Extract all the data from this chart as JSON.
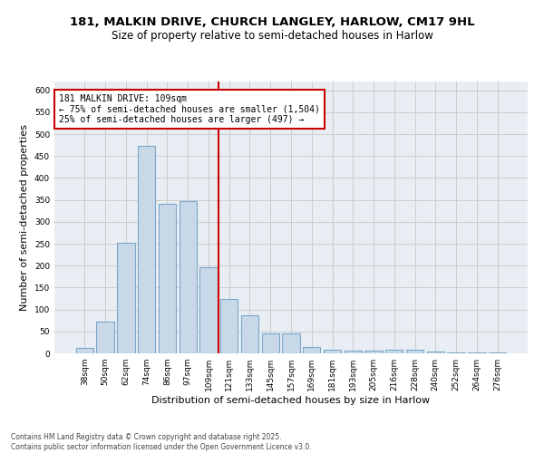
{
  "title_line1": "181, MALKIN DRIVE, CHURCH LANGLEY, HARLOW, CM17 9HL",
  "title_line2": "Size of property relative to semi-detached houses in Harlow",
  "xlabel": "Distribution of semi-detached houses by size in Harlow",
  "ylabel": "Number of semi-detached properties",
  "categories": [
    "38sqm",
    "50sqm",
    "62sqm",
    "74sqm",
    "86sqm",
    "97sqm",
    "109sqm",
    "121sqm",
    "133sqm",
    "145sqm",
    "157sqm",
    "169sqm",
    "181sqm",
    "193sqm",
    "205sqm",
    "216sqm",
    "228sqm",
    "240sqm",
    "252sqm",
    "264sqm",
    "276sqm"
  ],
  "values": [
    13,
    73,
    253,
    473,
    340,
    347,
    197,
    125,
    87,
    46,
    46,
    14,
    9,
    7,
    7,
    9,
    9,
    4,
    2,
    2,
    2
  ],
  "bar_color": "#C8D8E8",
  "bar_edge_color": "#7BA7C7",
  "vline_x_index": 6,
  "vline_color": "#CC0000",
  "annotation_text": "181 MALKIN DRIVE: 109sqm\n← 75% of semi-detached houses are smaller (1,504)\n25% of semi-detached houses are larger (497) →",
  "annotation_box_color": "#CC0000",
  "ylim": [
    0,
    620
  ],
  "yticks": [
    0,
    50,
    100,
    150,
    200,
    250,
    300,
    350,
    400,
    450,
    500,
    550,
    600
  ],
  "grid_color": "#CCCCCC",
  "background_color": "#E8EEF4",
  "footer_text": "Contains HM Land Registry data © Crown copyright and database right 2025.\nContains public sector information licensed under the Open Government Licence v3.0.",
  "title_fontsize": 9.5,
  "subtitle_fontsize": 8.5,
  "axis_label_fontsize": 8,
  "tick_fontsize": 6.5,
  "annotation_fontsize": 7,
  "footer_fontsize": 5.5
}
